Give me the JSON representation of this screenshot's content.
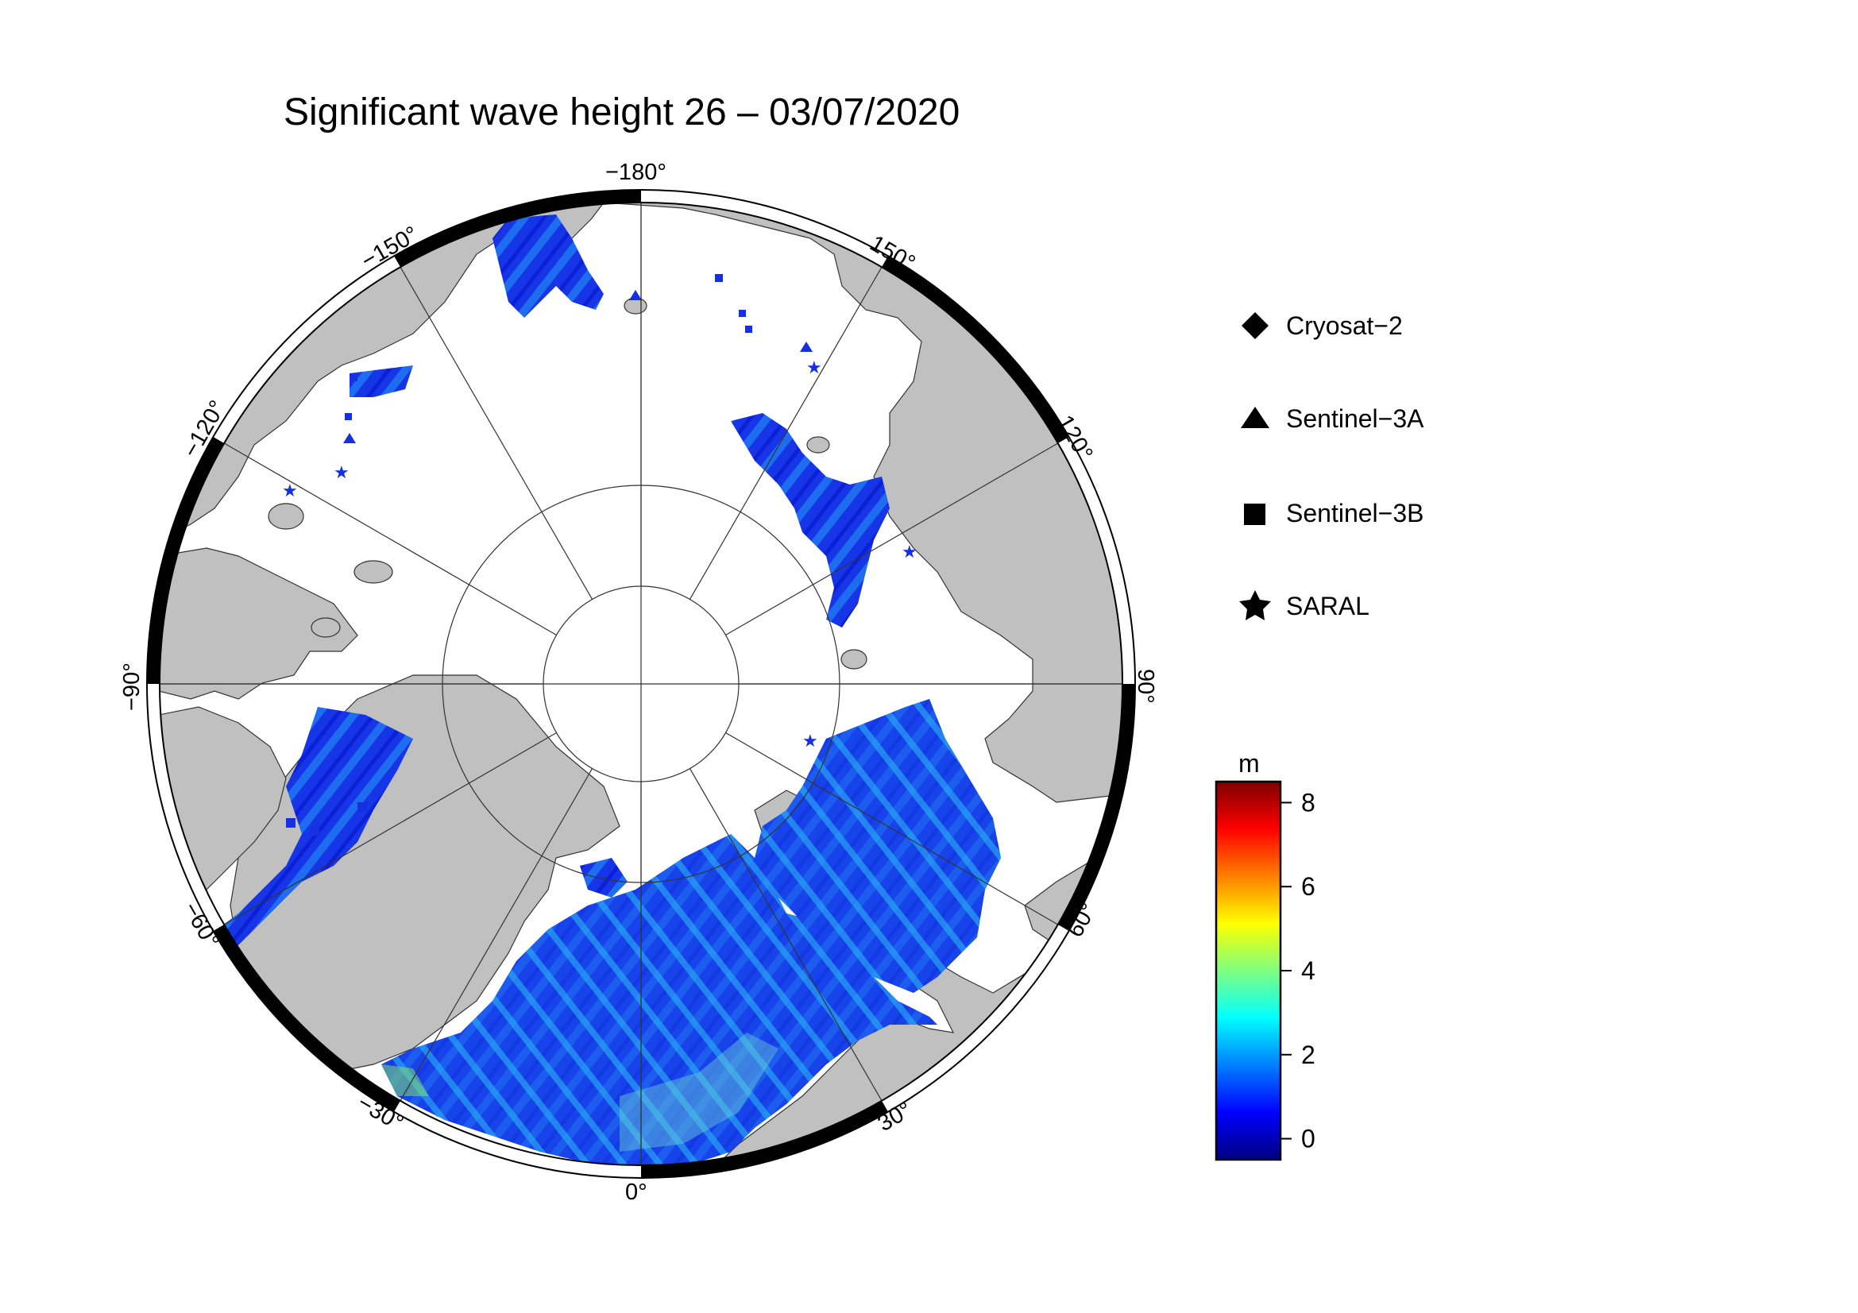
{
  "title": "Significant wave height 26 – 03/07/2020",
  "longitude_labels": {
    "m180": "−180°",
    "p150": "150°",
    "p120": "120°",
    "p90": "90°",
    "p60": "60°",
    "p30": "30°",
    "zero": "0°",
    "m30": "−30°",
    "m60": "−60°",
    "m90": "−90°",
    "m120": "−120°",
    "m150": "−150°"
  },
  "legend": [
    {
      "label": "Cryosat−2",
      "marker": "diamond"
    },
    {
      "label": "Sentinel−3A",
      "marker": "triangle"
    },
    {
      "label": "Sentinel−3B",
      "marker": "square"
    },
    {
      "label": "SARAL",
      "marker": "star"
    }
  ],
  "colorbar": {
    "unit": "m",
    "ticks": [
      "0",
      "2",
      "4",
      "6",
      "8"
    ],
    "min": -0.5,
    "max": 8.5,
    "colors": [
      "#00007f",
      "#0000ff",
      "#007fff",
      "#00ffff",
      "#7fff7f",
      "#ffff00",
      "#ff7f00",
      "#ff0000",
      "#7f0000"
    ]
  },
  "colors": {
    "land": "#c0c0c0",
    "ice": "#ffffff",
    "frame_black": "#000000",
    "wave_low": "#1030e8",
    "wave_mid": "#1a7ff0"
  }
}
